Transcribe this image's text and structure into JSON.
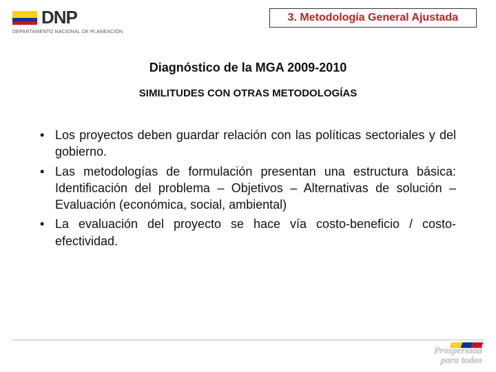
{
  "header": {
    "logo_text": "DNP",
    "logo_sub": "DEPARTAMENTO NACIONAL DE PLANEACIÓN",
    "flag_colors": {
      "yellow": "#fbd116",
      "blue": "#003893",
      "red": "#ce1126"
    },
    "section_title": "3. Metodología  General Ajustada",
    "section_title_color": "#c02020"
  },
  "content": {
    "subtitle_1": "Diagnóstico de la MGA 2009-2010",
    "subtitle_2": "SIMILITUDES  CON OTRAS METODOLOGÍAS",
    "bullets": [
      "Los proyectos deben guardar relación con las políticas sectoriales y del gobierno.",
      "Las metodologías de formulación presentan una estructura básica: Identificación del problema – Objetivos – Alternativas de solución – Evaluación (económica, social, ambiental)",
      "La evaluación del proyecto se hace vía costo-beneficio / costo-efectividad."
    ]
  },
  "footer": {
    "line1": "Prosperidad",
    "line2": "para todos"
  }
}
